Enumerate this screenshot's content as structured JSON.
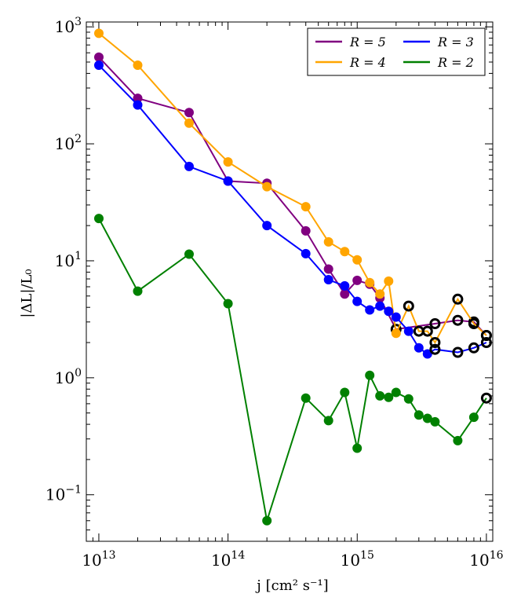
{
  "chart_data": {
    "type": "line",
    "xscale": "log",
    "yscale": "log",
    "xlim": [
      8000000000000.0,
      1.12e+16
    ],
    "ylim": [
      0.04,
      1100
    ],
    "xlabel": "j [cm² s⁻¹]",
    "ylabel": "|ΔL|/L₀",
    "xticks": [
      {
        "value": 10000000000000.0,
        "base": "10",
        "exp": "13"
      },
      {
        "value": 100000000000000.0,
        "base": "10",
        "exp": "14"
      },
      {
        "value": 1000000000000000.0,
        "base": "10",
        "exp": "15"
      },
      {
        "value": 1e+16,
        "base": "10",
        "exp": "16"
      }
    ],
    "yticks": [
      {
        "value": 0.1,
        "base": "10",
        "exp": "−1"
      },
      {
        "value": 1,
        "base": "10",
        "exp": "0"
      },
      {
        "value": 10,
        "base": "10",
        "exp": "1"
      },
      {
        "value": 100,
        "base": "10",
        "exp": "2"
      },
      {
        "value": 1000,
        "base": "10",
        "exp": "3"
      }
    ],
    "legend": {
      "placement": "top-right",
      "entries": [
        {
          "series": "R=5",
          "text": "R = 5"
        },
        {
          "series": "R=3",
          "text": "R = 3"
        },
        {
          "series": "R=4",
          "text": "R = 4"
        },
        {
          "series": "R=2",
          "text": "R = 2"
        }
      ]
    },
    "series": [
      {
        "name": "R=5",
        "color": "#800080",
        "x": [
          10000000000000.0,
          20000000000000.0,
          50000000000000.0,
          100000000000000.0,
          200000000000000.0,
          400000000000000.0,
          600000000000000.0,
          800000000000000.0,
          1000000000000000.0,
          1250000000000000.0,
          1500000000000000.0,
          2000000000000000.0,
          4000000000000000.0,
          6000000000000000.0,
          8000000000000000.0,
          1e+16
        ],
        "y": [
          550,
          245,
          185,
          48,
          46,
          18,
          8.5,
          5.2,
          6.8,
          6.3,
          4.8,
          2.6,
          2.9,
          3.1,
          3.0,
          2.3
        ],
        "open": [
          false,
          false,
          false,
          false,
          false,
          false,
          false,
          false,
          false,
          false,
          false,
          true,
          true,
          true,
          true,
          true
        ]
      },
      {
        "name": "R=4",
        "color": "#ffa500",
        "x": [
          10000000000000.0,
          20000000000000.0,
          50000000000000.0,
          100000000000000.0,
          200000000000000.0,
          400000000000000.0,
          600000000000000.0,
          800000000000000.0,
          1000000000000000.0,
          1250000000000000.0,
          1500000000000000.0,
          1750000000000000.0,
          2000000000000000.0,
          2500000000000000.0,
          3000000000000000.0,
          3500000000000000.0,
          4000000000000000.0,
          6000000000000000.0,
          8000000000000000.0,
          1e+16
        ],
        "y": [
          880,
          470,
          150,
          70,
          43,
          29,
          14.5,
          12,
          10.2,
          6.5,
          5.2,
          6.7,
          2.4,
          4.1,
          2.5,
          2.5,
          2.0,
          4.7,
          2.9,
          2.3
        ],
        "open": [
          false,
          false,
          false,
          false,
          false,
          false,
          false,
          false,
          false,
          false,
          false,
          false,
          false,
          true,
          true,
          true,
          true,
          true,
          true,
          true
        ]
      },
      {
        "name": "R=3",
        "color": "#0000ff",
        "x": [
          10000000000000.0,
          20000000000000.0,
          50000000000000.0,
          100000000000000.0,
          200000000000000.0,
          400000000000000.0,
          600000000000000.0,
          800000000000000.0,
          1000000000000000.0,
          1250000000000000.0,
          1500000000000000.0,
          1750000000000000.0,
          2000000000000000.0,
          2500000000000000.0,
          3000000000000000.0,
          3500000000000000.0,
          4000000000000000.0,
          6000000000000000.0,
          8000000000000000.0,
          1e+16
        ],
        "y": [
          470,
          215,
          64,
          48,
          20,
          11.5,
          6.9,
          6.1,
          4.5,
          3.8,
          4.1,
          3.7,
          3.3,
          2.5,
          1.8,
          1.6,
          1.75,
          1.65,
          1.8,
          2.0
        ],
        "open": [
          false,
          false,
          false,
          false,
          false,
          false,
          false,
          false,
          false,
          false,
          false,
          false,
          false,
          false,
          false,
          false,
          true,
          true,
          true,
          true
        ]
      },
      {
        "name": "R=2",
        "color": "#008000",
        "x": [
          10000000000000.0,
          20000000000000.0,
          50000000000000.0,
          100000000000000.0,
          200000000000000.0,
          400000000000000.0,
          600000000000000.0,
          800000000000000.0,
          1000000000000000.0,
          1250000000000000.0,
          1500000000000000.0,
          1750000000000000.0,
          2000000000000000.0,
          2500000000000000.0,
          3000000000000000.0,
          3500000000000000.0,
          4000000000000000.0,
          6000000000000000.0,
          8000000000000000.0,
          1e+16
        ],
        "y": [
          23,
          5.5,
          11.4,
          4.3,
          0.06,
          0.67,
          0.43,
          0.75,
          0.25,
          1.05,
          0.7,
          0.68,
          0.75,
          0.66,
          0.48,
          0.45,
          0.42,
          0.29,
          0.46,
          0.67
        ],
        "open": [
          false,
          false,
          false,
          false,
          false,
          false,
          false,
          false,
          false,
          false,
          false,
          false,
          false,
          false,
          false,
          false,
          false,
          false,
          false,
          true
        ]
      }
    ]
  }
}
